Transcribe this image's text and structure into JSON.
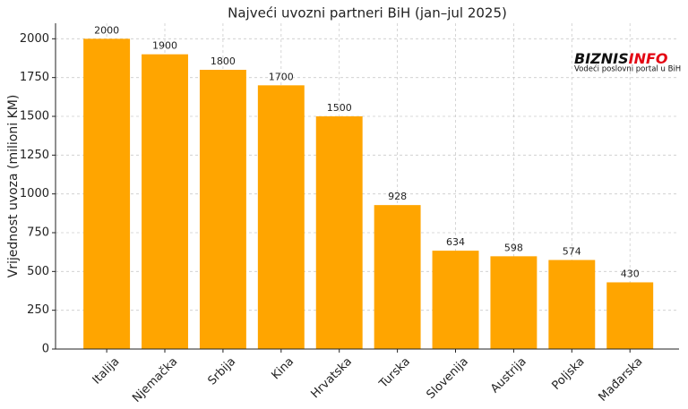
{
  "chart_data": {
    "type": "bar",
    "title": "Najveći uvozni partneri BiH (jan–jul 2025)",
    "y_label": "Vrijednost uvoza (milioni KM)",
    "categories": [
      "Italija",
      "Njemačka",
      "Srbija",
      "Kina",
      "Hrvatska",
      "Turska",
      "Slovenija",
      "Austrija",
      "Poljska",
      "Mađarska"
    ],
    "values": [
      2000,
      1900,
      1800,
      1700,
      1500,
      928,
      634,
      598,
      574,
      430
    ],
    "color": "#ffa500",
    "ylim": [
      0,
      2100
    ],
    "yticks": [
      0,
      250,
      500,
      750,
      1000,
      1250,
      1500,
      1750,
      2000
    ],
    "grid": true,
    "logo": {
      "part1": "BIZNIS",
      "part2": "INFO",
      "tagline": "Vodeći poslovni portal u BiH"
    }
  }
}
